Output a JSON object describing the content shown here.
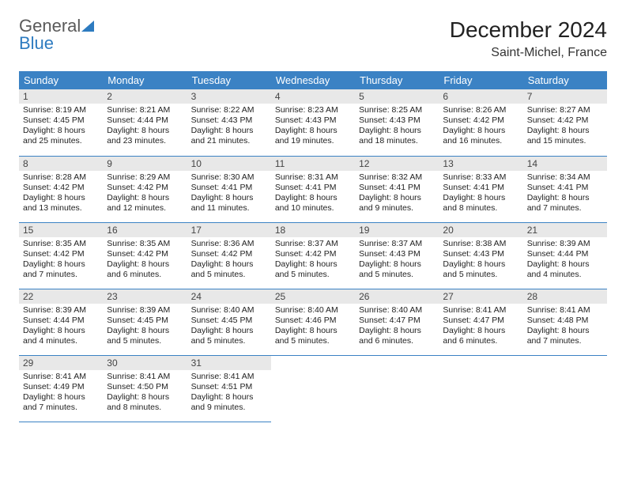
{
  "logo": {
    "word1": "General",
    "word2": "Blue"
  },
  "title": "December 2024",
  "location": "Saint-Michel, France",
  "colors": {
    "header_bg": "#3b82c4",
    "header_text": "#ffffff",
    "daynum_bg": "#e8e8e8",
    "row_border": "#3b82c4",
    "logo_gray": "#5a5a5a",
    "logo_blue": "#2d7bc0"
  },
  "weekdays": [
    "Sunday",
    "Monday",
    "Tuesday",
    "Wednesday",
    "Thursday",
    "Friday",
    "Saturday"
  ],
  "weeks": [
    [
      {
        "n": "1",
        "sr": "Sunrise: 8:19 AM",
        "ss": "Sunset: 4:45 PM",
        "dl": "Daylight: 8 hours and 25 minutes."
      },
      {
        "n": "2",
        "sr": "Sunrise: 8:21 AM",
        "ss": "Sunset: 4:44 PM",
        "dl": "Daylight: 8 hours and 23 minutes."
      },
      {
        "n": "3",
        "sr": "Sunrise: 8:22 AM",
        "ss": "Sunset: 4:43 PM",
        "dl": "Daylight: 8 hours and 21 minutes."
      },
      {
        "n": "4",
        "sr": "Sunrise: 8:23 AM",
        "ss": "Sunset: 4:43 PM",
        "dl": "Daylight: 8 hours and 19 minutes."
      },
      {
        "n": "5",
        "sr": "Sunrise: 8:25 AM",
        "ss": "Sunset: 4:43 PM",
        "dl": "Daylight: 8 hours and 18 minutes."
      },
      {
        "n": "6",
        "sr": "Sunrise: 8:26 AM",
        "ss": "Sunset: 4:42 PM",
        "dl": "Daylight: 8 hours and 16 minutes."
      },
      {
        "n": "7",
        "sr": "Sunrise: 8:27 AM",
        "ss": "Sunset: 4:42 PM",
        "dl": "Daylight: 8 hours and 15 minutes."
      }
    ],
    [
      {
        "n": "8",
        "sr": "Sunrise: 8:28 AM",
        "ss": "Sunset: 4:42 PM",
        "dl": "Daylight: 8 hours and 13 minutes."
      },
      {
        "n": "9",
        "sr": "Sunrise: 8:29 AM",
        "ss": "Sunset: 4:42 PM",
        "dl": "Daylight: 8 hours and 12 minutes."
      },
      {
        "n": "10",
        "sr": "Sunrise: 8:30 AM",
        "ss": "Sunset: 4:41 PM",
        "dl": "Daylight: 8 hours and 11 minutes."
      },
      {
        "n": "11",
        "sr": "Sunrise: 8:31 AM",
        "ss": "Sunset: 4:41 PM",
        "dl": "Daylight: 8 hours and 10 minutes."
      },
      {
        "n": "12",
        "sr": "Sunrise: 8:32 AM",
        "ss": "Sunset: 4:41 PM",
        "dl": "Daylight: 8 hours and 9 minutes."
      },
      {
        "n": "13",
        "sr": "Sunrise: 8:33 AM",
        "ss": "Sunset: 4:41 PM",
        "dl": "Daylight: 8 hours and 8 minutes."
      },
      {
        "n": "14",
        "sr": "Sunrise: 8:34 AM",
        "ss": "Sunset: 4:41 PM",
        "dl": "Daylight: 8 hours and 7 minutes."
      }
    ],
    [
      {
        "n": "15",
        "sr": "Sunrise: 8:35 AM",
        "ss": "Sunset: 4:42 PM",
        "dl": "Daylight: 8 hours and 7 minutes."
      },
      {
        "n": "16",
        "sr": "Sunrise: 8:35 AM",
        "ss": "Sunset: 4:42 PM",
        "dl": "Daylight: 8 hours and 6 minutes."
      },
      {
        "n": "17",
        "sr": "Sunrise: 8:36 AM",
        "ss": "Sunset: 4:42 PM",
        "dl": "Daylight: 8 hours and 5 minutes."
      },
      {
        "n": "18",
        "sr": "Sunrise: 8:37 AM",
        "ss": "Sunset: 4:42 PM",
        "dl": "Daylight: 8 hours and 5 minutes."
      },
      {
        "n": "19",
        "sr": "Sunrise: 8:37 AM",
        "ss": "Sunset: 4:43 PM",
        "dl": "Daylight: 8 hours and 5 minutes."
      },
      {
        "n": "20",
        "sr": "Sunrise: 8:38 AM",
        "ss": "Sunset: 4:43 PM",
        "dl": "Daylight: 8 hours and 5 minutes."
      },
      {
        "n": "21",
        "sr": "Sunrise: 8:39 AM",
        "ss": "Sunset: 4:44 PM",
        "dl": "Daylight: 8 hours and 4 minutes."
      }
    ],
    [
      {
        "n": "22",
        "sr": "Sunrise: 8:39 AM",
        "ss": "Sunset: 4:44 PM",
        "dl": "Daylight: 8 hours and 4 minutes."
      },
      {
        "n": "23",
        "sr": "Sunrise: 8:39 AM",
        "ss": "Sunset: 4:45 PM",
        "dl": "Daylight: 8 hours and 5 minutes."
      },
      {
        "n": "24",
        "sr": "Sunrise: 8:40 AM",
        "ss": "Sunset: 4:45 PM",
        "dl": "Daylight: 8 hours and 5 minutes."
      },
      {
        "n": "25",
        "sr": "Sunrise: 8:40 AM",
        "ss": "Sunset: 4:46 PM",
        "dl": "Daylight: 8 hours and 5 minutes."
      },
      {
        "n": "26",
        "sr": "Sunrise: 8:40 AM",
        "ss": "Sunset: 4:47 PM",
        "dl": "Daylight: 8 hours and 6 minutes."
      },
      {
        "n": "27",
        "sr": "Sunrise: 8:41 AM",
        "ss": "Sunset: 4:47 PM",
        "dl": "Daylight: 8 hours and 6 minutes."
      },
      {
        "n": "28",
        "sr": "Sunrise: 8:41 AM",
        "ss": "Sunset: 4:48 PM",
        "dl": "Daylight: 8 hours and 7 minutes."
      }
    ],
    [
      {
        "n": "29",
        "sr": "Sunrise: 8:41 AM",
        "ss": "Sunset: 4:49 PM",
        "dl": "Daylight: 8 hours and 7 minutes."
      },
      {
        "n": "30",
        "sr": "Sunrise: 8:41 AM",
        "ss": "Sunset: 4:50 PM",
        "dl": "Daylight: 8 hours and 8 minutes."
      },
      {
        "n": "31",
        "sr": "Sunrise: 8:41 AM",
        "ss": "Sunset: 4:51 PM",
        "dl": "Daylight: 8 hours and 9 minutes."
      },
      null,
      null,
      null,
      null
    ]
  ]
}
